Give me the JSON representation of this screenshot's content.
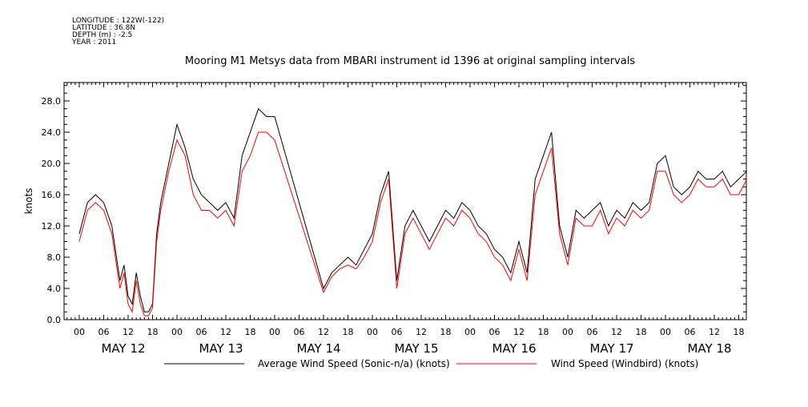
{
  "header": {
    "meta_lines": [
      "LONGITUDE : 122W(-122)",
      "LATITUDE : 36.8N",
      "DEPTH (m) : -2.5",
      "YEAR : 2011"
    ],
    "title": "Mooring M1 Metsys data from MBARI instrument id 1396 at original sampling intervals"
  },
  "chart_data": {
    "type": "line",
    "title": "Mooring M1 Metsys data from MBARI instrument id 1396 at original sampling intervals",
    "xlabel": "",
    "ylabel": "knots",
    "ylim": [
      0,
      30
    ],
    "xlim_hours": [
      -4,
      166
    ],
    "y_ticks": [
      "0.0",
      "4.0",
      "8.0",
      "12.0",
      "16.0",
      "20.0",
      "24.0",
      "28.0"
    ],
    "y_tick_values": [
      0,
      4,
      8,
      12,
      16,
      20,
      24,
      28
    ],
    "x_hour_tick_labels": [
      "00",
      "06",
      "12",
      "18",
      "00",
      "06",
      "12",
      "18",
      "00",
      "06",
      "12",
      "18",
      "00",
      "06",
      "12",
      "18",
      "00",
      "06",
      "12",
      "18",
      "00",
      "06",
      "12",
      "18",
      "00",
      "06",
      "12",
      "18"
    ],
    "x_day_labels": [
      "MAY 12",
      "MAY 13",
      "MAY 14",
      "MAY 15",
      "MAY 16",
      "MAY 17",
      "MAY 18"
    ],
    "grid": false,
    "legend_position": "bottom",
    "series": [
      {
        "name": "Average Wind Speed (Sonic-n/a) (knots)",
        "color": "#000000",
        "x_hours": [
          0,
          2,
          4,
          6,
          8,
          10,
          11,
          12,
          13,
          14,
          15,
          16,
          17,
          18,
          19,
          20,
          22,
          24,
          26,
          28,
          30,
          32,
          34,
          36,
          38,
          40,
          42,
          44,
          46,
          48,
          60,
          62,
          64,
          66,
          68,
          70,
          72,
          74,
          76,
          78,
          80,
          82,
          84,
          86,
          88,
          90,
          92,
          94,
          96,
          98,
          100,
          102,
          104,
          106,
          108,
          110,
          112,
          114,
          116,
          118,
          120,
          122,
          124,
          126,
          128,
          130,
          132,
          134,
          136,
          138,
          140,
          142,
          144,
          146,
          148,
          150,
          152,
          154,
          156,
          158,
          160,
          162,
          164
        ],
        "values": [
          11,
          15,
          16,
          15,
          12,
          5,
          7,
          3,
          2,
          6,
          3,
          1,
          1,
          2,
          11,
          15,
          20,
          25,
          22,
          18,
          16,
          15,
          14,
          15,
          13,
          21,
          24,
          27,
          26,
          26,
          4,
          6,
          7,
          8,
          7,
          9,
          11,
          16,
          19,
          5,
          12,
          14,
          12,
          10,
          12,
          14,
          13,
          15,
          14,
          12,
          11,
          9,
          8,
          6,
          10,
          6,
          18,
          21,
          24,
          12,
          8,
          14,
          13,
          14,
          15,
          12,
          14,
          13,
          15,
          14,
          15,
          20,
          21,
          17,
          16,
          17,
          19,
          18,
          18,
          19,
          17,
          18,
          19
        ]
      },
      {
        "name": "Wind Speed (Windbird) (knots)",
        "color": "#ff0000",
        "x_hours": [
          0,
          2,
          4,
          6,
          8,
          10,
          11,
          12,
          13,
          14,
          15,
          16,
          17,
          18,
          19,
          20,
          22,
          24,
          26,
          28,
          30,
          32,
          34,
          36,
          38,
          40,
          42,
          44,
          46,
          48,
          60,
          62,
          64,
          66,
          68,
          70,
          72,
          74,
          76,
          78,
          80,
          82,
          84,
          86,
          88,
          90,
          92,
          94,
          96,
          98,
          100,
          102,
          104,
          106,
          108,
          110,
          112,
          114,
          116,
          118,
          120,
          122,
          124,
          126,
          128,
          130,
          132,
          134,
          136,
          138,
          140,
          142,
          144,
          146,
          148,
          150,
          152,
          154,
          156,
          158,
          160,
          162,
          164
        ],
        "values": [
          10,
          14,
          15,
          14,
          11,
          4,
          6,
          2,
          1,
          5,
          2,
          0.5,
          0.5,
          1.5,
          10,
          14,
          19,
          23,
          21,
          16,
          14,
          14,
          13,
          14,
          12,
          19,
          21,
          24,
          24,
          23,
          3.5,
          5.5,
          6.5,
          7,
          6.5,
          8,
          10,
          15,
          18,
          4,
          11,
          13,
          11,
          9,
          11,
          13,
          12,
          14,
          13,
          11,
          10,
          8,
          7,
          5,
          9,
          5,
          16,
          19,
          22,
          11,
          7,
          13,
          12,
          12,
          14,
          11,
          13,
          12,
          14,
          13,
          14,
          19,
          19,
          16,
          15,
          16,
          18,
          17,
          17,
          18,
          16,
          16,
          18
        ]
      }
    ]
  }
}
